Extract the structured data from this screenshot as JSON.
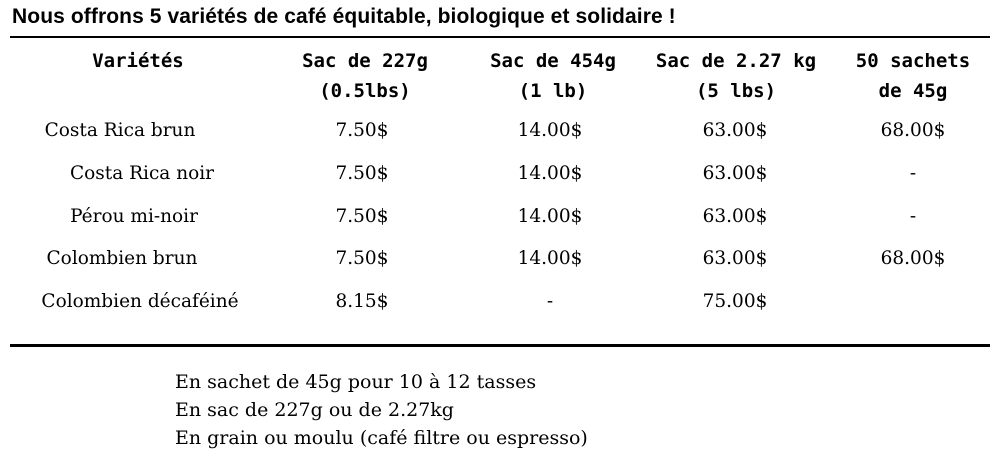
{
  "title": "Nous offrons 5 variétés de café équitable, biologique et solidaire !",
  "table": {
    "headers": [
      {
        "line1": "Variétés",
        "line2": ""
      },
      {
        "line1": "Sac de 227g",
        "line2": "(0.5lbs)"
      },
      {
        "line1": "Sac de 454g",
        "line2": "(1 lb)"
      },
      {
        "line1": "Sac de 2.27 kg",
        "line2": "(5 lbs)"
      },
      {
        "line1": "50 sachets",
        "line2": "de 45g"
      }
    ],
    "rows": [
      {
        "name": "Costa Rica brun",
        "p227": "7.50$",
        "p454": "14.00$",
        "p227kg": "63.00$",
        "sachets": "68.00$"
      },
      {
        "name": "Costa Rica noir",
        "p227": "7.50$",
        "p454": "14.00$",
        "p227kg": "63.00$",
        "sachets": "-"
      },
      {
        "name": "Pérou mi-noir",
        "p227": "7.50$",
        "p454": "14.00$",
        "p227kg": "63.00$",
        "sachets": "-"
      },
      {
        "name": "Colombien brun",
        "p227": "7.50$",
        "p454": "14.00$",
        "p227kg": "63.00$",
        "sachets": "68.00$"
      },
      {
        "name": "Colombien décaféiné",
        "p227": "8.15$",
        "p454": "-",
        "p227kg": "75.00$",
        "sachets": ""
      }
    ]
  },
  "notes": [
    "En sachet de 45g pour 10 à 12 tasses",
    "En sac de 227g ou de 2.27kg",
    "En grain ou moulu (café filtre ou espresso)"
  ]
}
